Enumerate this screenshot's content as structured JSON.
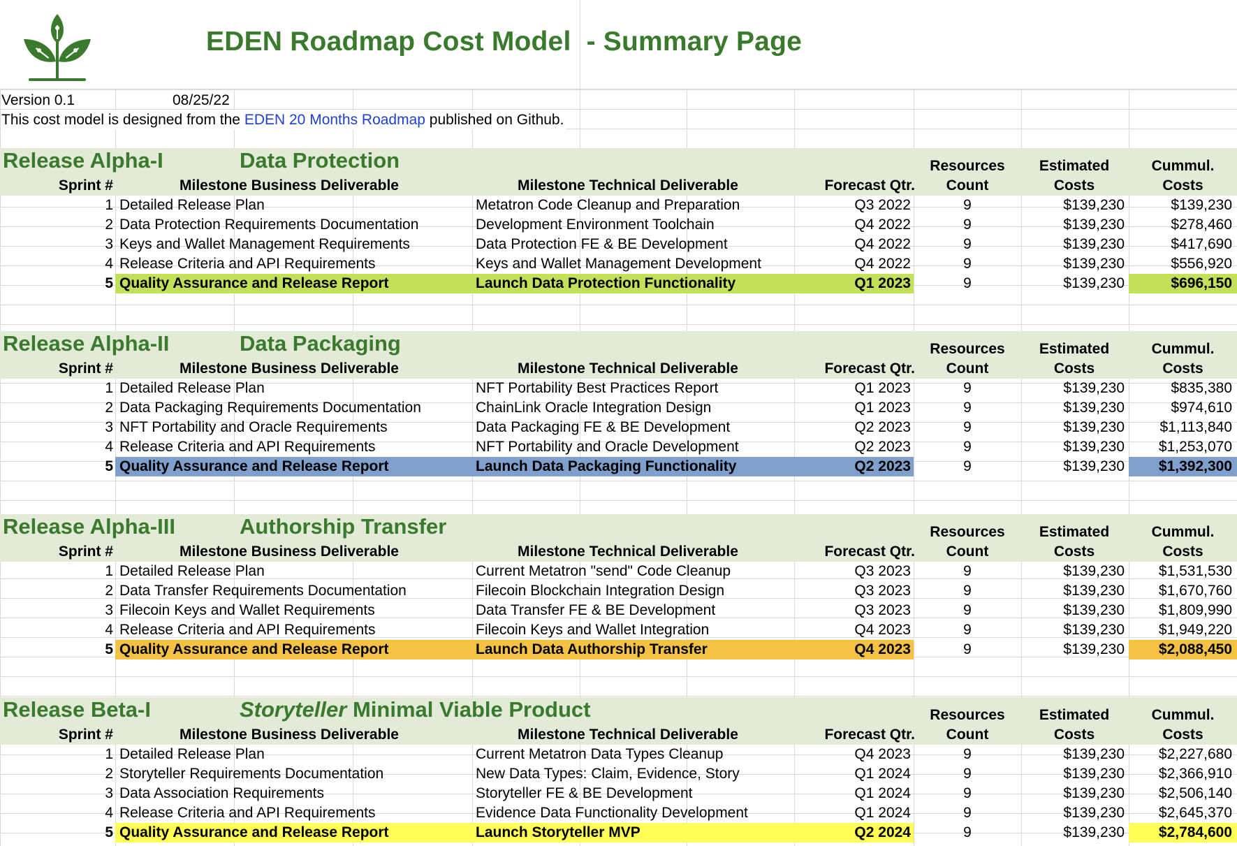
{
  "header": {
    "title": "EDEN Roadmap Cost Model",
    "title_suffix": "- Summary Page",
    "version": "Version 0.1",
    "date": "08/25/22",
    "intro_prefix": "This cost model is designed from the ",
    "intro_link": "EDEN 20 Months Roadmap",
    "intro_suffix": " published on Github."
  },
  "icons": {
    "logo": "sprout-leaf-logo-icon"
  },
  "colors": {
    "title_green": "#3a7a2c",
    "band": "#e3ead8",
    "alpha1_highlight": "#c3e05a",
    "alpha2_highlight": "#7f9fcc",
    "alpha3_highlight": "#f6c244",
    "beta1_highlight": "#ffff55"
  },
  "columns": {
    "sprint": "Sprint #",
    "business": "Milestone Business Deliverable",
    "technical": "Milestone Technical Deliverable",
    "forecast": "Forecast Qtr.",
    "resources_1": "Resources",
    "resources_2": "Count",
    "estimated_1": "Estimated",
    "estimated_2": "Costs",
    "cummul_1": "Cummul.",
    "cummul_2": "Costs"
  },
  "sections": [
    {
      "release": "Release Alpha-I",
      "title": "Data Protection",
      "rows": [
        {
          "sprint": "1",
          "business": "Detailed Release Plan",
          "technical": "Metatron Code Cleanup and Preparation",
          "qtr": "Q3 2022",
          "count": "9",
          "est": "$139,230",
          "cum": "$139,230"
        },
        {
          "sprint": "2",
          "business": "Data Protection Requirements Documentation",
          "technical": "Development Environment Toolchain",
          "qtr": "Q4 2022",
          "count": "9",
          "est": "$139,230",
          "cum": "$278,460"
        },
        {
          "sprint": "3",
          "business": "Keys and Wallet Management Requirements",
          "technical": "Data Protection FE & BE Development",
          "qtr": "Q4 2022",
          "count": "9",
          "est": "$139,230",
          "cum": "$417,690"
        },
        {
          "sprint": "4",
          "business": "Release Criteria and API Requirements",
          "technical": "Keys and Wallet Management Development",
          "qtr": "Q4 2022",
          "count": "9",
          "est": "$139,230",
          "cum": "$556,920"
        },
        {
          "sprint": "5",
          "business": "Quality Assurance and Release Report",
          "technical": "Launch Data Protection Functionality",
          "qtr": "Q1 2023",
          "count": "9",
          "est": "$139,230",
          "cum": "$696,150"
        }
      ]
    },
    {
      "release": "Release Alpha-II",
      "title": "Data Packaging",
      "rows": [
        {
          "sprint": "1",
          "business": "Detailed Release Plan",
          "technical": "NFT Portability Best Practices Report",
          "qtr": "Q1 2023",
          "count": "9",
          "est": "$139,230",
          "cum": "$835,380"
        },
        {
          "sprint": "2",
          "business": "Data Packaging Requirements Documentation",
          "technical": "ChainLink Oracle Integration Design",
          "qtr": "Q1 2023",
          "count": "9",
          "est": "$139,230",
          "cum": "$974,610"
        },
        {
          "sprint": "3",
          "business": "NFT Portability and Oracle Requirements",
          "technical": "Data Packaging FE & BE Development",
          "qtr": "Q2 2023",
          "count": "9",
          "est": "$139,230",
          "cum": "$1,113,840"
        },
        {
          "sprint": "4",
          "business": "Release Criteria and API Requirements",
          "technical": "NFT Portability and Oracle Development",
          "qtr": "Q2 2023",
          "count": "9",
          "est": "$139,230",
          "cum": "$1,253,070"
        },
        {
          "sprint": "5",
          "business": "Quality Assurance and Release Report",
          "technical": "Launch Data Packaging Functionality",
          "qtr": "Q2 2023",
          "count": "9",
          "est": "$139,230",
          "cum": "$1,392,300"
        }
      ]
    },
    {
      "release": "Release Alpha-III",
      "title": "Authorship Transfer",
      "rows": [
        {
          "sprint": "1",
          "business": "Detailed Release Plan",
          "technical": "Current Metatron \"send\" Code Cleanup",
          "qtr": "Q3 2023",
          "count": "9",
          "est": "$139,230",
          "cum": "$1,531,530"
        },
        {
          "sprint": "2",
          "business": "Data Transfer Requirements Documentation",
          "technical": "Filecoin Blockchain Integration Design",
          "qtr": "Q3 2023",
          "count": "9",
          "est": "$139,230",
          "cum": "$1,670,760"
        },
        {
          "sprint": "3",
          "business": "Filecoin Keys and Wallet Requirements",
          "technical": "Data Transfer FE & BE Development",
          "qtr": "Q3 2023",
          "count": "9",
          "est": "$139,230",
          "cum": "$1,809,990"
        },
        {
          "sprint": "4",
          "business": "Release Criteria and API Requirements",
          "technical": "Filecoin Keys and Wallet Integration",
          "qtr": "Q4 2023",
          "count": "9",
          "est": "$139,230",
          "cum": "$1,949,220"
        },
        {
          "sprint": "5",
          "business": "Quality Assurance and Release Report",
          "technical": "Launch Data Authorship Transfer",
          "qtr": "Q4 2023",
          "count": "9",
          "est": "$139,230",
          "cum": "$2,088,450"
        }
      ]
    },
    {
      "release": "Release Beta-I",
      "title_italic": "Storyteller",
      "title": " Minimal Viable Product",
      "rows": [
        {
          "sprint": "1",
          "business": "Detailed Release Plan",
          "technical": "Current Metatron Data Types Cleanup",
          "qtr": "Q4 2023",
          "count": "9",
          "est": "$139,230",
          "cum": "$2,227,680"
        },
        {
          "sprint": "2",
          "business": "Storyteller Requirements Documentation",
          "technical": "New Data Types: Claim, Evidence, Story",
          "qtr": "Q1 2024",
          "count": "9",
          "est": "$139,230",
          "cum": "$2,366,910"
        },
        {
          "sprint": "3",
          "business": "Data Association Requirements",
          "technical": "Storyteller FE & BE Development",
          "qtr": "Q1 2024",
          "count": "9",
          "est": "$139,230",
          "cum": "$2,506,140"
        },
        {
          "sprint": "4",
          "business": "Release Criteria and API Requirements",
          "technical": "Evidence Data Functionality Development",
          "qtr": "Q1 2024",
          "count": "9",
          "est": "$139,230",
          "cum": "$2,645,370"
        },
        {
          "sprint": "5",
          "business": "Quality Assurance and Release Report",
          "technical": "Launch Storyteller MVP",
          "qtr": "Q2 2024",
          "count": "9",
          "est": "$139,230",
          "cum": "$2,784,600"
        }
      ]
    }
  ]
}
